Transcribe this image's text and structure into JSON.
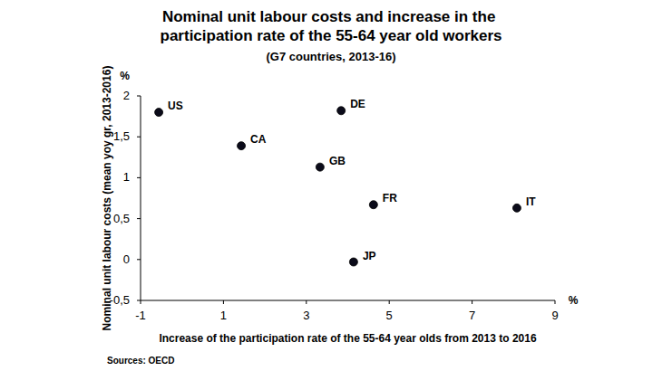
{
  "chart_data": {
    "type": "scatter",
    "title": "Nominal unit labour costs and increase in the participation rate of the 55-64 year old workers",
    "subtitle": "(G7 countries, 2013-16)",
    "x_label": "Increase of the participation rate of the 55-64 year olds from 2013 to 2016",
    "y_label": "Nominal unit labour costs (mean yoy gr, 2013-2016)",
    "x_unit": "%",
    "y_unit": "%",
    "source": "Sources: OECD",
    "categories": [
      "US",
      "CA",
      "DE",
      "GB",
      "FR",
      "IT",
      "JP"
    ],
    "x": [
      -0.56,
      1.43,
      3.84,
      3.33,
      4.62,
      8.08,
      4.14
    ],
    "values": [
      1.8,
      1.39,
      1.82,
      1.13,
      0.67,
      0.63,
      -0.03
    ],
    "color": "#0b0b1a",
    "marker": "circle",
    "xlim": [
      -1,
      9
    ],
    "xticks": [
      -1,
      1,
      3,
      5,
      7,
      9
    ],
    "ylim": [
      -0.5,
      2
    ],
    "yticks": [
      {
        "value": -0.5,
        "label": "-0,5"
      },
      0,
      {
        "value": 0.5,
        "label": "0,5"
      },
      1,
      {
        "value": 1.5,
        "label": "1,5"
      },
      2
    ],
    "grid": false
  }
}
